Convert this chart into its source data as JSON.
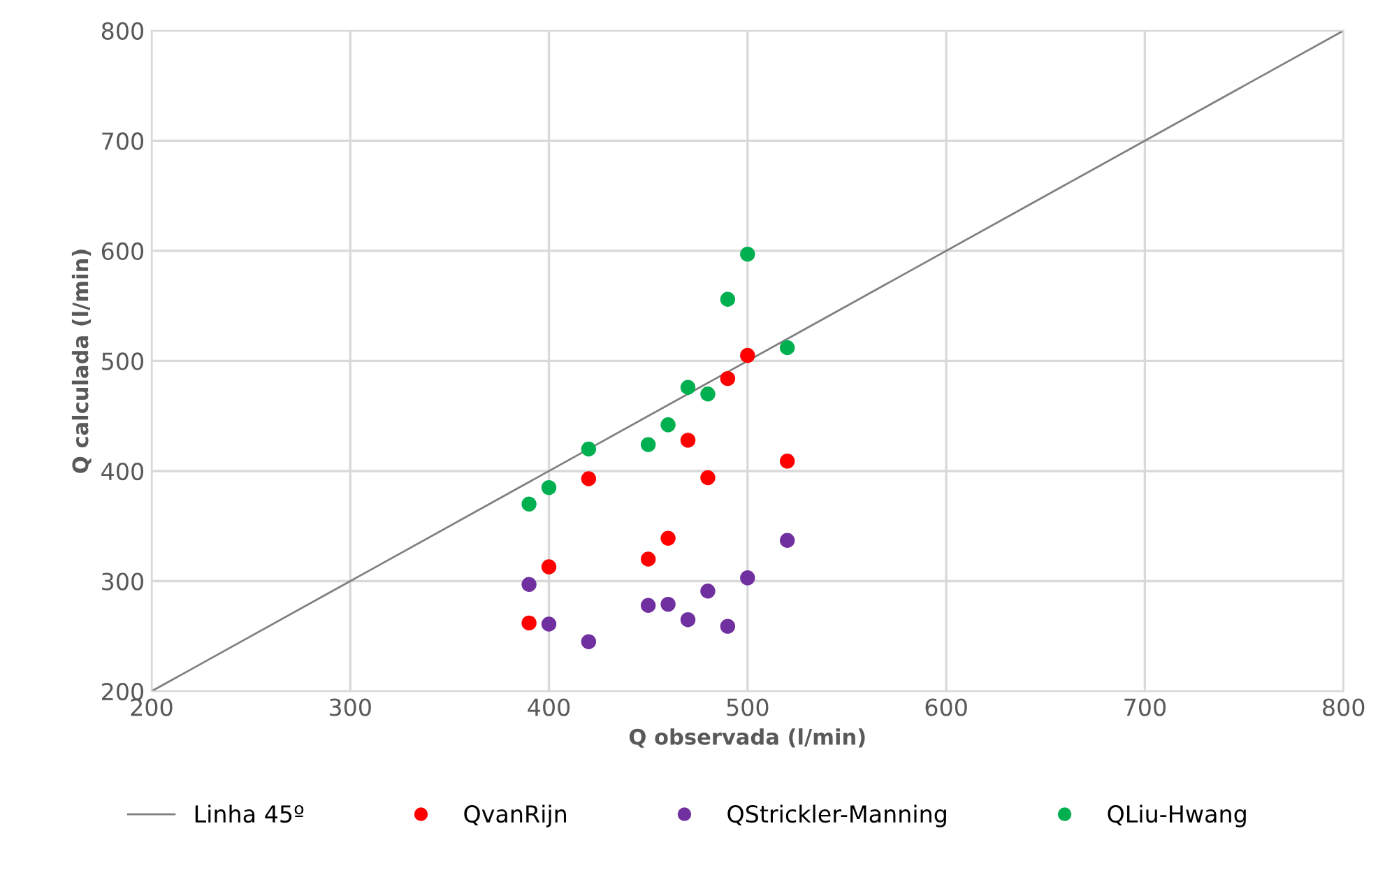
{
  "chart_data": {
    "type": "scatter",
    "xlabel": "Q observada (l/min)",
    "ylabel": "Q calculada (l/min)",
    "xlim": [
      200,
      800
    ],
    "ylim": [
      200,
      800
    ],
    "xticks": [
      200,
      300,
      400,
      500,
      600,
      700,
      800
    ],
    "yticks": [
      200,
      300,
      400,
      500,
      600,
      700,
      800
    ],
    "grid": true,
    "legend": "bottom",
    "marker": "circle",
    "series": [
      {
        "name": "Linha 45º",
        "type": "line",
        "color": "#808080",
        "x": [
          200,
          800
        ],
        "values": [
          200,
          800
        ],
        "marker": "none",
        "line_style": "solid"
      },
      {
        "name": "QvanRijn",
        "color": "#ff0000",
        "x": [
          390,
          400,
          420,
          450,
          460,
          470,
          480,
          490,
          500,
          520
        ],
        "values": [
          262,
          313,
          393,
          320,
          339,
          428,
          394,
          484,
          505,
          409
        ]
      },
      {
        "name": "QStrickler-Manning",
        "color": "#7030a0",
        "x": [
          390,
          400,
          420,
          450,
          460,
          470,
          480,
          490,
          500,
          520
        ],
        "values": [
          297,
          261,
          245,
          278,
          279,
          265,
          291,
          259,
          303,
          337
        ]
      },
      {
        "name": "QLiu-Hwang",
        "color": "#00b050",
        "x": [
          390,
          400,
          420,
          450,
          460,
          470,
          480,
          490,
          500,
          520
        ],
        "values": [
          370,
          385,
          420,
          424,
          442,
          476,
          470,
          556,
          597,
          512
        ]
      }
    ]
  }
}
